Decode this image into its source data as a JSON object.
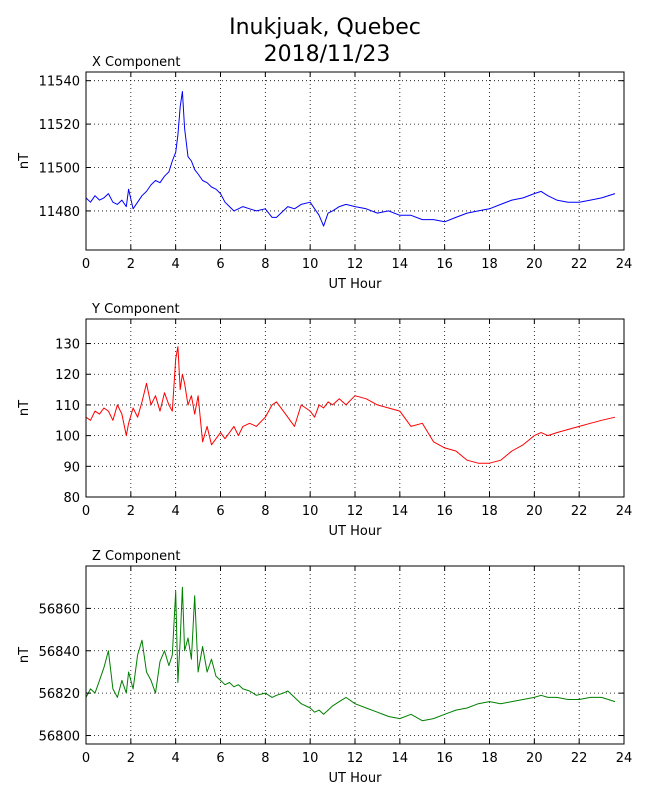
{
  "title_line1": "Inukjuak, Quebec",
  "title_line2": "2018/11/23",
  "chart_data": [
    {
      "type": "line",
      "title": "X Component",
      "xlabel": "UT Hour",
      "ylabel": "nT",
      "xlim": [
        0,
        24
      ],
      "ylim": [
        11462,
        11544
      ],
      "xticks": [
        0,
        2,
        4,
        6,
        8,
        10,
        12,
        14,
        16,
        18,
        20,
        22,
        24
      ],
      "yticks": [
        11480,
        11500,
        11520,
        11540
      ],
      "grid": true,
      "color": "#0000ff",
      "series": [
        {
          "x": [
            0,
            0.2,
            0.4,
            0.6,
            0.8,
            1.0,
            1.2,
            1.4,
            1.6,
            1.8,
            1.9,
            2.1,
            2.3,
            2.5,
            2.7,
            2.9,
            3.1,
            3.3,
            3.5,
            3.7,
            3.85,
            4.0,
            4.1,
            4.2,
            4.3,
            4.4,
            4.55,
            4.7,
            4.85,
            5.0,
            5.2,
            5.4,
            5.6,
            5.8,
            6.0,
            6.2,
            6.4,
            6.6,
            6.8,
            7.0,
            7.3,
            7.6,
            8.0,
            8.3,
            8.5,
            8.8,
            9.0,
            9.3,
            9.6,
            10.0,
            10.2,
            10.4,
            10.6,
            10.8,
            11.0,
            11.3,
            11.6,
            12.0,
            12.5,
            13.0,
            13.5,
            14.0,
            14.5,
            15.0,
            15.5,
            16.0,
            16.5,
            17.0,
            17.5,
            18.0,
            18.5,
            19.0,
            19.5,
            20.0,
            20.3,
            20.6,
            21.0,
            21.5,
            22.0,
            22.5,
            23.0,
            23.6
          ],
          "values": [
            11486,
            11484,
            11487,
            11485,
            11486,
            11488,
            11484,
            11483,
            11485,
            11482,
            11490,
            11481,
            11484,
            11487,
            11489,
            11492,
            11494,
            11493,
            11496,
            11498,
            11503,
            11507,
            11515,
            11528,
            11535,
            11518,
            11505,
            11503,
            11499,
            11497,
            11494,
            11493,
            11491,
            11490,
            11488,
            11484,
            11482,
            11480,
            11481,
            11482,
            11481,
            11480,
            11481,
            11477,
            11477,
            11480,
            11482,
            11481,
            11483,
            11484,
            11481,
            11478,
            11473,
            11479,
            11480,
            11482,
            11483,
            11482,
            11481,
            11479,
            11480,
            11478,
            11478,
            11476,
            11476,
            11475,
            11477,
            11479,
            11480,
            11481,
            11483,
            11485,
            11486,
            11488,
            11489,
            11487,
            11485,
            11484,
            11484,
            11485,
            11486,
            11488
          ]
        }
      ]
    },
    {
      "type": "line",
      "title": "Y Component",
      "xlabel": "UT Hour",
      "ylabel": "nT",
      "xlim": [
        0,
        24
      ],
      "ylim": [
        80,
        138
      ],
      "xticks": [
        0,
        2,
        4,
        6,
        8,
        10,
        12,
        14,
        16,
        18,
        20,
        22,
        24
      ],
      "yticks": [
        80,
        90,
        100,
        110,
        120,
        130
      ],
      "grid": true,
      "color": "#ff0000",
      "series": [
        {
          "x": [
            0,
            0.2,
            0.4,
            0.6,
            0.8,
            1.0,
            1.2,
            1.4,
            1.6,
            1.8,
            1.9,
            2.1,
            2.3,
            2.5,
            2.7,
            2.9,
            3.1,
            3.3,
            3.5,
            3.7,
            3.85,
            4.0,
            4.1,
            4.2,
            4.3,
            4.4,
            4.55,
            4.7,
            4.85,
            5.0,
            5.2,
            5.4,
            5.6,
            5.8,
            6.0,
            6.2,
            6.4,
            6.6,
            6.8,
            7.0,
            7.3,
            7.6,
            8.0,
            8.3,
            8.5,
            8.8,
            9.0,
            9.3,
            9.6,
            10.0,
            10.2,
            10.4,
            10.6,
            10.8,
            11.0,
            11.3,
            11.6,
            12.0,
            12.5,
            13.0,
            13.5,
            14.0,
            14.5,
            15.0,
            15.5,
            16.0,
            16.5,
            17.0,
            17.5,
            18.0,
            18.5,
            19.0,
            19.5,
            20.0,
            20.3,
            20.6,
            21.0,
            21.5,
            22.0,
            22.5,
            23.0,
            23.6
          ],
          "values": [
            106,
            105,
            108,
            107,
            109,
            108,
            105,
            110,
            107,
            100,
            104,
            109,
            106,
            111,
            117,
            110,
            113,
            108,
            114,
            110,
            108,
            125,
            129,
            115,
            120,
            117,
            110,
            113,
            107,
            113,
            98,
            103,
            97,
            99,
            101,
            99,
            101,
            103,
            100,
            103,
            104,
            103,
            106,
            110,
            111,
            108,
            106,
            103,
            110,
            108,
            106,
            110,
            109,
            111,
            110,
            112,
            110,
            113,
            112,
            110,
            109,
            108,
            103,
            104,
            98,
            96,
            95,
            92,
            91,
            91,
            92,
            95,
            97,
            100,
            101,
            100,
            101,
            102,
            103,
            104,
            105,
            106
          ]
        }
      ]
    },
    {
      "type": "line",
      "title": "Z Component",
      "xlabel": "UT Hour",
      "ylabel": "nT",
      "xlim": [
        0,
        24
      ],
      "ylim": [
        56796,
        56880
      ],
      "xticks": [
        0,
        2,
        4,
        6,
        8,
        10,
        12,
        14,
        16,
        18,
        20,
        22,
        24
      ],
      "yticks": [
        56800,
        56820,
        56840,
        56860
      ],
      "grid": true,
      "color": "#008000",
      "series": [
        {
          "x": [
            0,
            0.2,
            0.4,
            0.6,
            0.8,
            1.0,
            1.2,
            1.4,
            1.6,
            1.8,
            1.9,
            2.1,
            2.3,
            2.5,
            2.7,
            2.9,
            3.1,
            3.3,
            3.5,
            3.7,
            3.85,
            4.0,
            4.1,
            4.2,
            4.3,
            4.4,
            4.55,
            4.7,
            4.85,
            5.0,
            5.2,
            5.4,
            5.6,
            5.8,
            6.0,
            6.2,
            6.4,
            6.6,
            6.8,
            7.0,
            7.3,
            7.6,
            8.0,
            8.3,
            8.5,
            8.8,
            9.0,
            9.3,
            9.6,
            10.0,
            10.2,
            10.4,
            10.6,
            10.8,
            11.0,
            11.3,
            11.6,
            12.0,
            12.5,
            13.0,
            13.5,
            14.0,
            14.5,
            15.0,
            15.5,
            16.0,
            16.5,
            17.0,
            17.5,
            18.0,
            18.5,
            19.0,
            19.5,
            20.0,
            20.3,
            20.6,
            21.0,
            21.5,
            22.0,
            22.5,
            23.0,
            23.6
          ],
          "values": [
            56818,
            56822,
            56820,
            56826,
            56832,
            56840,
            56822,
            56818,
            56826,
            56820,
            56830,
            56822,
            56838,
            56845,
            56830,
            56826,
            56820,
            56835,
            56840,
            56833,
            56838,
            56868,
            56825,
            56845,
            56870,
            56840,
            56846,
            56836,
            56866,
            56830,
            56842,
            56830,
            56836,
            56828,
            56826,
            56824,
            56825,
            56823,
            56824,
            56822,
            56821,
            56819,
            56820,
            56818,
            56819,
            56820,
            56821,
            56818,
            56815,
            56813,
            56811,
            56812,
            56810,
            56812,
            56814,
            56816,
            56818,
            56815,
            56813,
            56811,
            56809,
            56808,
            56810,
            56807,
            56808,
            56810,
            56812,
            56813,
            56815,
            56816,
            56815,
            56816,
            56817,
            56818,
            56819,
            56818,
            56818,
            56817,
            56817,
            56818,
            56818,
            56816
          ]
        }
      ]
    }
  ]
}
